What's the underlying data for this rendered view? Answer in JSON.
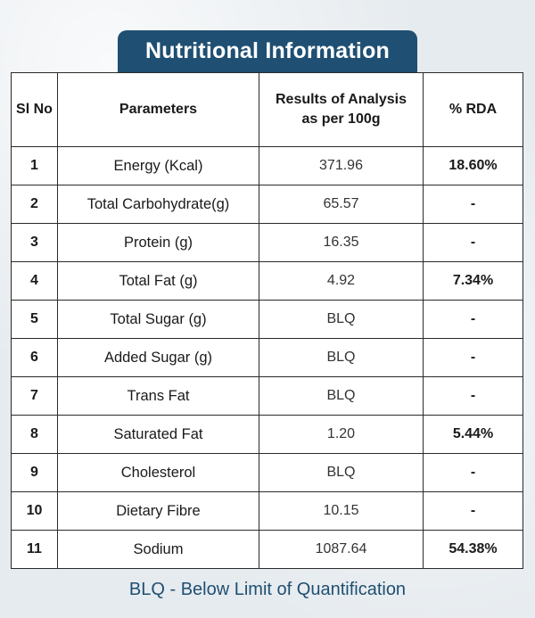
{
  "title": "Nutritional Information",
  "headers": {
    "sl_no": "Sl No",
    "parameters": "Parameters",
    "results": "Results of Analysis as per 100g",
    "rda": "% RDA"
  },
  "rows": [
    {
      "sl": "1",
      "param": "Energy (Kcal)",
      "result": "371.96",
      "rda": "18.60%"
    },
    {
      "sl": "2",
      "param": "Total Carbohydrate(g)",
      "result": "65.57",
      "rda": "-"
    },
    {
      "sl": "3",
      "param": "Protein (g)",
      "result": "16.35",
      "rda": "-"
    },
    {
      "sl": "4",
      "param": "Total Fat (g)",
      "result": "4.92",
      "rda": "7.34%"
    },
    {
      "sl": "5",
      "param": "Total Sugar (g)",
      "result": "BLQ",
      "rda": "-"
    },
    {
      "sl": "6",
      "param": "Added Sugar (g)",
      "result": "BLQ",
      "rda": "-"
    },
    {
      "sl": "7",
      "param": "Trans Fat",
      "result": "BLQ",
      "rda": "-"
    },
    {
      "sl": "8",
      "param": "Saturated Fat",
      "result": "1.20",
      "rda": "5.44%"
    },
    {
      "sl": "9",
      "param": "Cholesterol",
      "result": "BLQ",
      "rda": "-"
    },
    {
      "sl": "10",
      "param": "Dietary Fibre",
      "result": "10.15",
      "rda": "-"
    },
    {
      "sl": "11",
      "param": "Sodium",
      "result": "1087.64",
      "rda": "54.38%"
    }
  ],
  "footnote": "BLQ - Below Limit of Quantification",
  "colors": {
    "accent": "#1f4f72",
    "background": "#e6ebef",
    "border": "#2a2a2a"
  }
}
